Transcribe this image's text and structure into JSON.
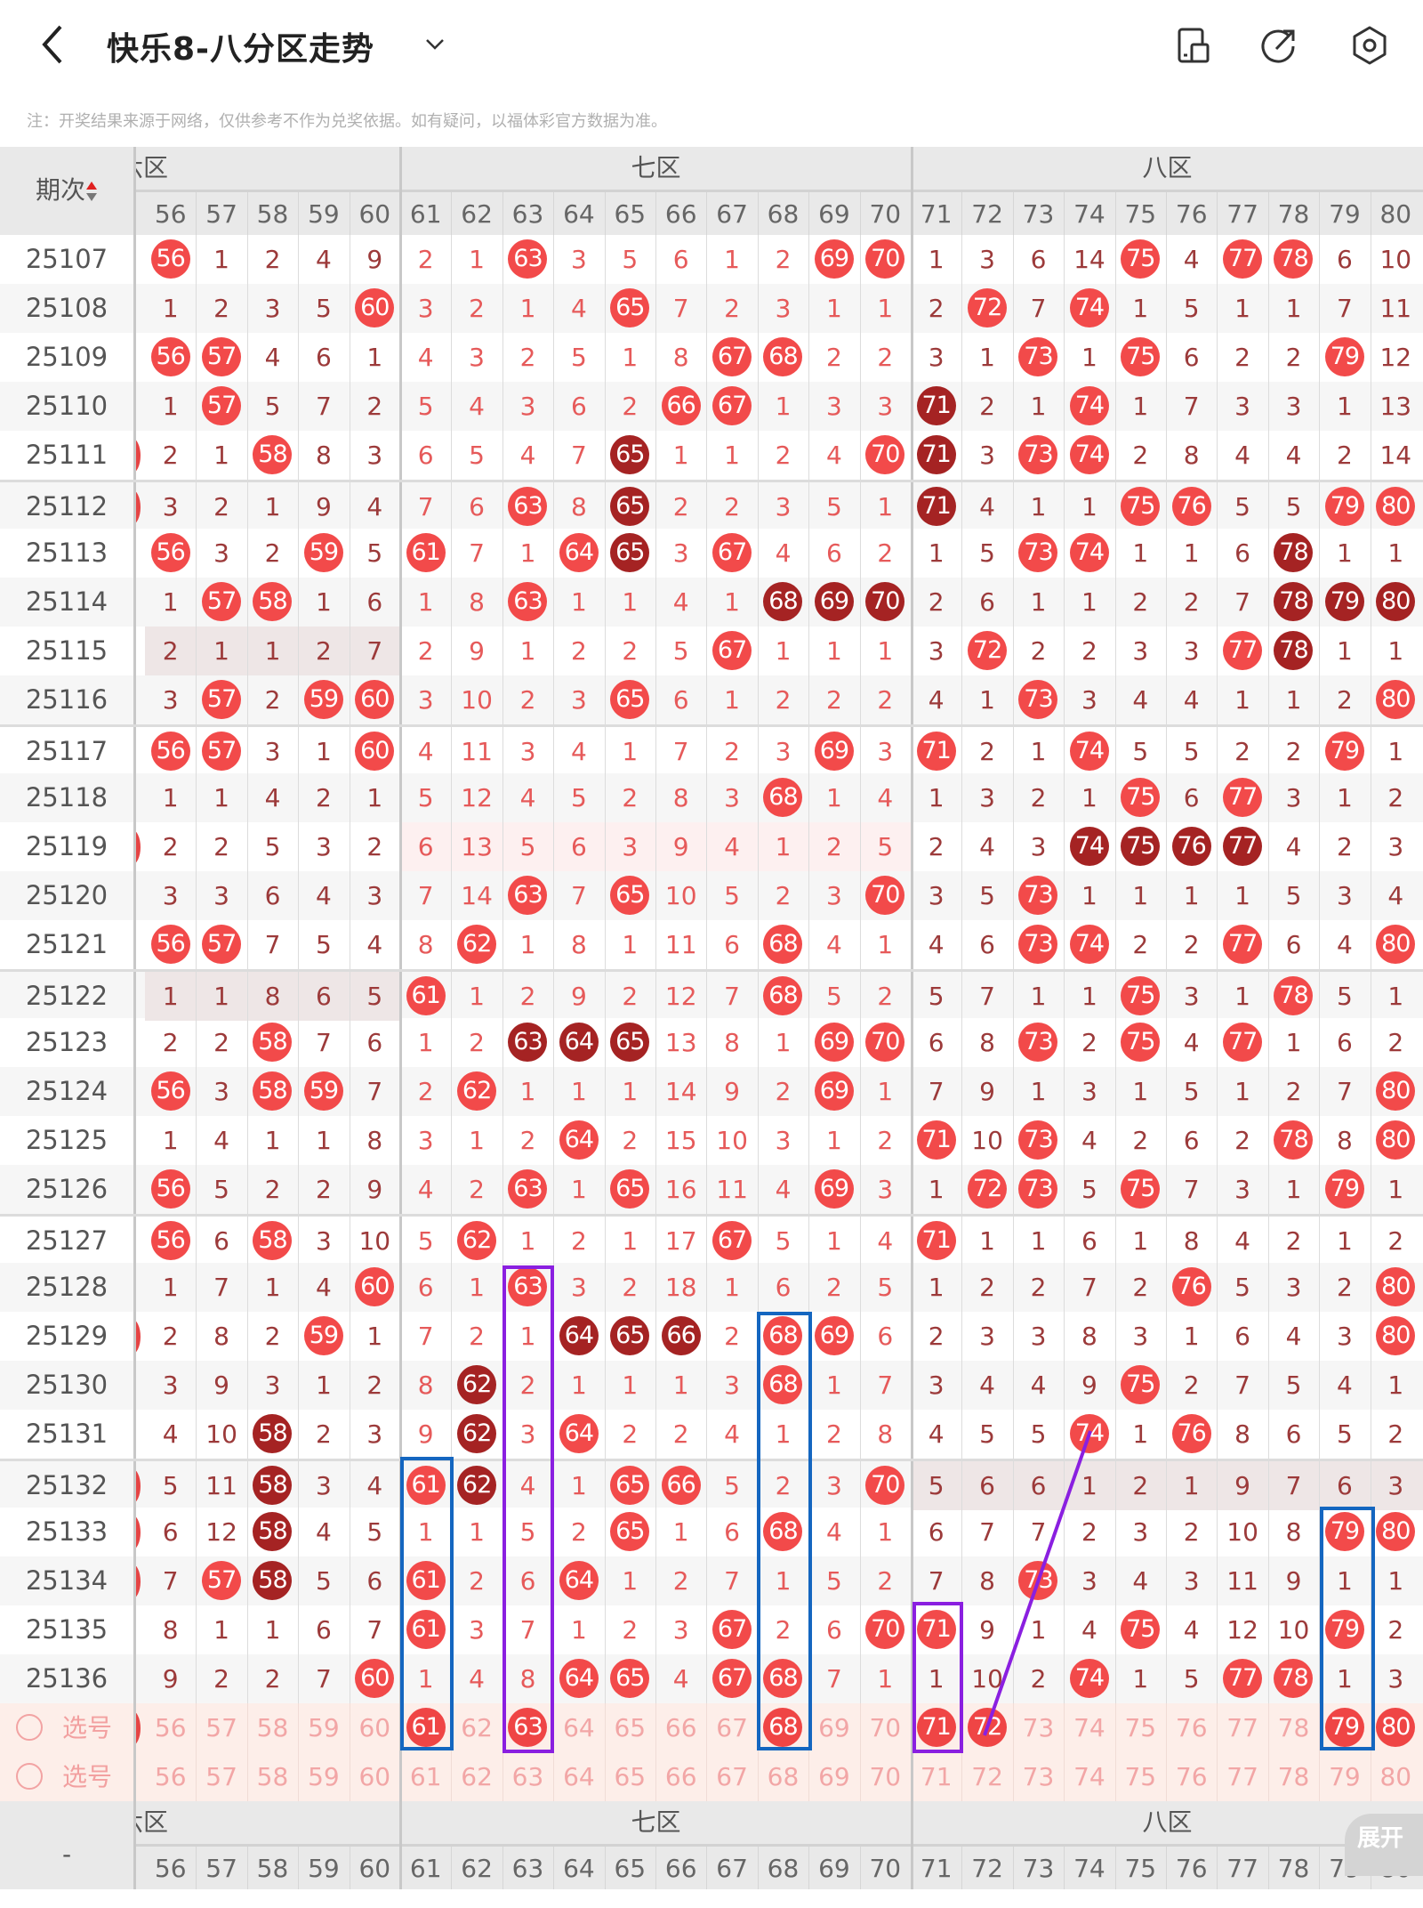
{
  "header": {
    "title": "快乐8-八分区走势",
    "icons": [
      "back-arrow-icon",
      "chevron-down-icon",
      "phone-layout-icon",
      "share-icon",
      "settings-icon"
    ]
  },
  "note": "注：开奖结果来源于网络，仅供参考不作为兑奖依据。如有疑问，以福体彩官方数据为准。",
  "table": {
    "period_header": "期次",
    "zones": [
      "六区",
      "七区",
      "八区"
    ],
    "columns": [
      "56",
      "57",
      "58",
      "59",
      "60",
      "61",
      "62",
      "63",
      "64",
      "65",
      "66",
      "67",
      "68",
      "69",
      "70",
      "71",
      "72",
      "73",
      "74",
      "75",
      "76",
      "77",
      "78",
      "79",
      "80"
    ],
    "colors": {
      "ball": "#f24a4a",
      "ball_dark": "#a52323",
      "miss_text_dark": "#9c3a3a",
      "miss_text_light": "#e65a5a"
    },
    "rows": [
      {
        "period": "25107",
        "cells": [
          "56",
          "1",
          "2",
          "4",
          "9",
          "2",
          "1",
          "63",
          "3",
          "5",
          "6",
          "1",
          "2",
          "69",
          "70",
          "1",
          "3",
          "6",
          "14",
          "75",
          "4",
          "77",
          "78",
          "6",
          "10"
        ],
        "dark": []
      },
      {
        "period": "25108",
        "cells": [
          "1",
          "2",
          "3",
          "5",
          "60",
          "3",
          "2",
          "1",
          "4",
          "65",
          "7",
          "2",
          "3",
          "1",
          "1",
          "2",
          "72",
          "7",
          "74",
          "1",
          "5",
          "1",
          "1",
          "7",
          "11"
        ],
        "dark": []
      },
      {
        "period": "25109",
        "cells": [
          "56",
          "57",
          "4",
          "6",
          "1",
          "4",
          "3",
          "2",
          "5",
          "1",
          "8",
          "67",
          "68",
          "2",
          "2",
          "3",
          "1",
          "73",
          "1",
          "75",
          "6",
          "2",
          "2",
          "79",
          "12"
        ],
        "dark": []
      },
      {
        "period": "25110",
        "cells": [
          "1",
          "57",
          "5",
          "7",
          "2",
          "5",
          "4",
          "3",
          "6",
          "2",
          "66",
          "67",
          "1",
          "3",
          "3",
          "71",
          "2",
          "1",
          "74",
          "1",
          "7",
          "3",
          "3",
          "1",
          "13"
        ],
        "dark": [
          "71"
        ]
      },
      {
        "period": "25111",
        "cells": [
          "2",
          "1",
          "58",
          "8",
          "3",
          "6",
          "5",
          "4",
          "7",
          "65",
          "1",
          "1",
          "2",
          "4",
          "70",
          "71",
          "3",
          "73",
          "74",
          "2",
          "8",
          "4",
          "4",
          "2",
          "14"
        ],
        "dark": [
          "65",
          "71"
        ],
        "left_partial_hit": true
      },
      {
        "period": "25112",
        "cells": [
          "3",
          "2",
          "1",
          "9",
          "4",
          "7",
          "6",
          "63",
          "8",
          "65",
          "2",
          "2",
          "3",
          "5",
          "1",
          "71",
          "4",
          "1",
          "1",
          "75",
          "76",
          "5",
          "5",
          "79",
          "80"
        ],
        "dark": [
          "65",
          "71"
        ],
        "left_partial_hit": true
      },
      {
        "period": "25113",
        "cells": [
          "56",
          "3",
          "2",
          "59",
          "5",
          "61",
          "7",
          "1",
          "64",
          "65",
          "3",
          "67",
          "4",
          "6",
          "2",
          "1",
          "5",
          "73",
          "74",
          "1",
          "1",
          "6",
          "78",
          "1",
          "1"
        ],
        "dark": [
          "65",
          "78"
        ]
      },
      {
        "period": "25114",
        "cells": [
          "1",
          "57",
          "58",
          "1",
          "6",
          "1",
          "8",
          "63",
          "1",
          "1",
          "4",
          "1",
          "68",
          "69",
          "70",
          "2",
          "6",
          "1",
          "1",
          "2",
          "2",
          "7",
          "78",
          "79",
          "80"
        ],
        "dark": [
          "68",
          "69",
          "70",
          "78",
          "79",
          "80"
        ]
      },
      {
        "period": "25115",
        "cells": [
          "2",
          "1",
          "1",
          "2",
          "7",
          "2",
          "9",
          "1",
          "2",
          "2",
          "5",
          "67",
          "1",
          "1",
          "1",
          "3",
          "72",
          "2",
          "2",
          "3",
          "3",
          "77",
          "78",
          "1",
          "1"
        ],
        "dark": [
          "78"
        ],
        "highlight_zone": "六区"
      },
      {
        "period": "25116",
        "cells": [
          "3",
          "57",
          "2",
          "59",
          "60",
          "3",
          "10",
          "2",
          "3",
          "65",
          "6",
          "1",
          "2",
          "2",
          "2",
          "4",
          "1",
          "73",
          "3",
          "4",
          "4",
          "1",
          "1",
          "2",
          "80"
        ],
        "dark": []
      },
      {
        "period": "25117",
        "cells": [
          "56",
          "57",
          "3",
          "1",
          "60",
          "4",
          "11",
          "3",
          "4",
          "1",
          "7",
          "2",
          "3",
          "69",
          "3",
          "71",
          "2",
          "1",
          "74",
          "5",
          "5",
          "2",
          "2",
          "79",
          "1"
        ],
        "dark": []
      },
      {
        "period": "25118",
        "cells": [
          "1",
          "1",
          "4",
          "2",
          "1",
          "5",
          "12",
          "4",
          "5",
          "2",
          "8",
          "3",
          "68",
          "1",
          "4",
          "1",
          "3",
          "2",
          "1",
          "75",
          "6",
          "77",
          "3",
          "1",
          "2"
        ],
        "dark": []
      },
      {
        "period": "25119",
        "cells": [
          "2",
          "2",
          "5",
          "3",
          "2",
          "6",
          "13",
          "5",
          "6",
          "3",
          "9",
          "4",
          "1",
          "2",
          "5",
          "2",
          "4",
          "3",
          "74",
          "75",
          "76",
          "77",
          "4",
          "2",
          "3"
        ],
        "dark": [
          "74",
          "75",
          "76",
          "77"
        ],
        "left_partial_hit": true,
        "highlight_zone": "七区"
      },
      {
        "period": "25120",
        "cells": [
          "3",
          "3",
          "6",
          "4",
          "3",
          "7",
          "14",
          "63",
          "7",
          "65",
          "10",
          "5",
          "2",
          "3",
          "70",
          "3",
          "5",
          "73",
          "1",
          "1",
          "1",
          "1",
          "5",
          "3",
          "4"
        ],
        "dark": []
      },
      {
        "period": "25121",
        "cells": [
          "56",
          "57",
          "7",
          "5",
          "4",
          "8",
          "62",
          "1",
          "8",
          "1",
          "11",
          "6",
          "68",
          "4",
          "1",
          "4",
          "6",
          "73",
          "74",
          "2",
          "2",
          "77",
          "6",
          "4",
          "80"
        ],
        "dark": []
      },
      {
        "period": "25122",
        "cells": [
          "1",
          "1",
          "8",
          "6",
          "5",
          "61",
          "1",
          "2",
          "9",
          "2",
          "12",
          "7",
          "68",
          "5",
          "2",
          "5",
          "7",
          "1",
          "1",
          "75",
          "3",
          "1",
          "78",
          "5",
          "1"
        ],
        "dark": [],
        "highlight_zone": "六区"
      },
      {
        "period": "25123",
        "cells": [
          "2",
          "2",
          "58",
          "7",
          "6",
          "1",
          "2",
          "63",
          "64",
          "65",
          "13",
          "8",
          "1",
          "69",
          "70",
          "6",
          "8",
          "73",
          "2",
          "75",
          "4",
          "77",
          "1",
          "6",
          "2"
        ],
        "dark": [
          "63",
          "64",
          "65"
        ]
      },
      {
        "period": "25124",
        "cells": [
          "56",
          "3",
          "58",
          "59",
          "7",
          "2",
          "62",
          "1",
          "1",
          "1",
          "14",
          "9",
          "2",
          "69",
          "1",
          "7",
          "9",
          "1",
          "3",
          "1",
          "5",
          "1",
          "2",
          "7",
          "80"
        ],
        "dark": []
      },
      {
        "period": "25125",
        "cells": [
          "1",
          "4",
          "1",
          "1",
          "8",
          "3",
          "1",
          "2",
          "64",
          "2",
          "15",
          "10",
          "3",
          "1",
          "2",
          "71",
          "10",
          "73",
          "4",
          "2",
          "6",
          "2",
          "78",
          "8",
          "80"
        ],
        "dark": []
      },
      {
        "period": "25126",
        "cells": [
          "56",
          "5",
          "2",
          "2",
          "9",
          "4",
          "2",
          "63",
          "1",
          "65",
          "16",
          "11",
          "4",
          "69",
          "3",
          "1",
          "72",
          "73",
          "5",
          "75",
          "7",
          "3",
          "1",
          "79",
          "1"
        ],
        "dark": []
      },
      {
        "period": "25127",
        "cells": [
          "56",
          "6",
          "58",
          "3",
          "10",
          "5",
          "62",
          "1",
          "2",
          "1",
          "17",
          "67",
          "5",
          "1",
          "4",
          "71",
          "1",
          "1",
          "6",
          "1",
          "8",
          "4",
          "2",
          "1",
          "2"
        ],
        "dark": []
      },
      {
        "period": "25128",
        "cells": [
          "1",
          "7",
          "1",
          "4",
          "60",
          "6",
          "1",
          "63",
          "3",
          "2",
          "18",
          "1",
          "6",
          "2",
          "5",
          "1",
          "2",
          "2",
          "7",
          "2",
          "76",
          "5",
          "3",
          "2",
          "80"
        ],
        "dark": []
      },
      {
        "period": "25129",
        "cells": [
          "2",
          "8",
          "2",
          "59",
          "1",
          "7",
          "2",
          "1",
          "64",
          "65",
          "66",
          "2",
          "68",
          "69",
          "6",
          "2",
          "3",
          "3",
          "8",
          "3",
          "1",
          "6",
          "4",
          "3",
          "80"
        ],
        "dark": [
          "64",
          "65",
          "66"
        ],
        "left_partial_hit": true
      },
      {
        "period": "25130",
        "cells": [
          "3",
          "9",
          "3",
          "1",
          "2",
          "8",
          "62",
          "2",
          "1",
          "1",
          "1",
          "3",
          "68",
          "1",
          "7",
          "3",
          "4",
          "4",
          "9",
          "75",
          "2",
          "7",
          "5",
          "4",
          "1"
        ],
        "dark": [
          "62"
        ]
      },
      {
        "period": "25131",
        "cells": [
          "4",
          "10",
          "58",
          "2",
          "3",
          "9",
          "62",
          "3",
          "64",
          "2",
          "2",
          "4",
          "1",
          "2",
          "8",
          "4",
          "5",
          "5",
          "74",
          "1",
          "76",
          "8",
          "6",
          "5",
          "2"
        ],
        "dark": [
          "58",
          "62"
        ]
      },
      {
        "period": "25132",
        "cells": [
          "5",
          "11",
          "58",
          "3",
          "4",
          "61",
          "62",
          "4",
          "1",
          "65",
          "66",
          "5",
          "2",
          "3",
          "70",
          "5",
          "6",
          "6",
          "1",
          "2",
          "1",
          "9",
          "7",
          "6",
          "3"
        ],
        "dark": [
          "58",
          "62"
        ],
        "left_partial_hit": true,
        "highlight_zone": "八区"
      },
      {
        "period": "25133",
        "cells": [
          "6",
          "12",
          "58",
          "4",
          "5",
          "1",
          "1",
          "5",
          "2",
          "65",
          "1",
          "6",
          "68",
          "4",
          "1",
          "6",
          "7",
          "7",
          "2",
          "3",
          "2",
          "10",
          "8",
          "79",
          "80"
        ],
        "dark": [
          "58"
        ],
        "left_partial_hit": true
      },
      {
        "period": "25134",
        "cells": [
          "7",
          "57",
          "58",
          "5",
          "6",
          "61",
          "2",
          "6",
          "64",
          "1",
          "2",
          "7",
          "1",
          "5",
          "2",
          "7",
          "8",
          "73",
          "3",
          "4",
          "3",
          "11",
          "9",
          "1",
          "1"
        ],
        "dark": [
          "58"
        ],
        "left_partial_hit": true
      },
      {
        "period": "25135",
        "cells": [
          "8",
          "1",
          "1",
          "6",
          "7",
          "61",
          "3",
          "7",
          "1",
          "2",
          "3",
          "67",
          "2",
          "6",
          "70",
          "71",
          "9",
          "1",
          "4",
          "75",
          "4",
          "12",
          "10",
          "79",
          "2"
        ],
        "dark": []
      },
      {
        "period": "25136",
        "cells": [
          "9",
          "2",
          "2",
          "7",
          "60",
          "1",
          "4",
          "8",
          "64",
          "65",
          "4",
          "67",
          "68",
          "7",
          "1",
          "1",
          "10",
          "2",
          "74",
          "1",
          "5",
          "77",
          "78",
          "1",
          "3"
        ],
        "dark": []
      }
    ],
    "select_rows": [
      {
        "label": "选号",
        "selected": [
          "61",
          "63",
          "68",
          "71",
          "72",
          "79",
          "80"
        ],
        "left_partial_hit": true
      },
      {
        "label": "选号",
        "selected": []
      }
    ],
    "footer_period": "-",
    "expand_label": "展开"
  }
}
